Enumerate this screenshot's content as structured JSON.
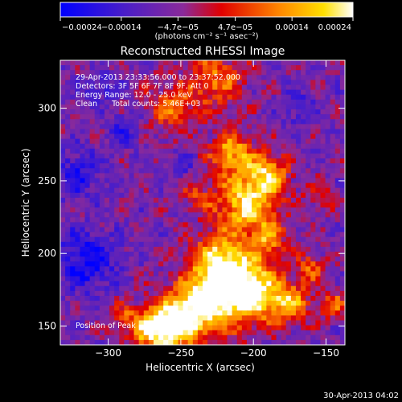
{
  "chart_data": {
    "type": "heatmap",
    "title": "Reconstructed RHESSI Image",
    "xlabel": "Heliocentric X (arcsec)",
    "ylabel": "Heliocentric Y (arcsec)",
    "xlim": [
      -333,
      -137
    ],
    "ylim": [
      137,
      333
    ],
    "x_ticks": [
      -300,
      -250,
      -200,
      -150
    ],
    "x_tick_labels": [
      "−300",
      "−250",
      "−200",
      "−150"
    ],
    "y_ticks": [
      150,
      200,
      250,
      300
    ],
    "y_tick_labels": [
      "150",
      "200",
      "250",
      "300"
    ],
    "colorbar": {
      "ticks": [
        -0.00024,
        -0.00014,
        -4.7e-05,
        4.7e-05,
        0.00014,
        0.00024
      ],
      "tick_labels": [
        "−0.00024",
        "−0.00014",
        "−4.7e−05",
        "4.7e−05",
        "0.00014",
        "0.00024"
      ],
      "unit_label": "(photons cm⁻² s⁻¹ asec⁻²)",
      "range": [
        -0.00024,
        0.00024
      ],
      "colormap": [
        "#0000ff",
        "#5020b0",
        "#8a2a9a",
        "#e00000",
        "#ff8800",
        "#ffe000",
        "#ffffff"
      ]
    },
    "annotations": [
      "29-Apr-2013 23:33:56.000 to 23:37:52.000",
      "Detectors: 3F 5F 6F 7F 8F 9F, Att 0",
      "Energy Range: 12.0 - 25.0 keV",
      "Clean      Total counts: 5.46E+03",
      "Position of Peak = [-204,175]"
    ],
    "peak": [
      -204,
      175
    ],
    "grid": false,
    "legend": "none"
  },
  "footer": {
    "timestamp": "30-Apr-2013 04:02"
  }
}
